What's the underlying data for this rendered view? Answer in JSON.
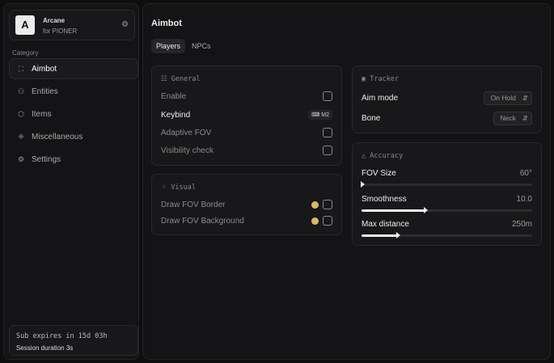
{
  "brand": {
    "logo": "A",
    "name": "Arcane",
    "subtitle": "for PIONER",
    "settings_icon": "gear-icon"
  },
  "sidebar": {
    "category_label": "Category",
    "items": [
      {
        "label": "Aimbot",
        "icon": "crosshair-icon",
        "glyph": "⛶",
        "active": true
      },
      {
        "label": "Entities",
        "icon": "entities-icon",
        "glyph": "⚇"
      },
      {
        "label": "Items",
        "icon": "box-icon",
        "glyph": "⬡"
      },
      {
        "label": "Miscellaneous",
        "icon": "grid-icon",
        "glyph": "⁜"
      },
      {
        "label": "Settings",
        "icon": "gear-icon",
        "glyph": "⚙"
      }
    ]
  },
  "subscription": {
    "expires": "Sub expires in 15d 03h",
    "session": "Session duration 3s"
  },
  "main": {
    "title": "Aimbot",
    "tabs": [
      {
        "label": "Players",
        "active": true
      },
      {
        "label": "NPCs"
      }
    ]
  },
  "general": {
    "title": "General",
    "enable": "Enable",
    "keybind": "Keybind",
    "keybind_value": "⌨ M2",
    "adaptive": "Adaptive FOV",
    "visibility": "Visibility check"
  },
  "visual": {
    "title": "Visual",
    "border": "Draw FOV Border",
    "background": "Draw FOV Background",
    "color": "#e0b860"
  },
  "tracker": {
    "title": "Tracker",
    "aim_mode": "Aim mode",
    "aim_mode_value": "On Hold",
    "bone": "Bone",
    "bone_value": "Neck"
  },
  "accuracy": {
    "title": "Accuracy",
    "fov_label": "FOV Size",
    "fov_value": "60°",
    "fov_fill": 0,
    "smooth_label": "Smoothness",
    "smooth_value": "10.0",
    "smooth_fill": 0.37,
    "dist_label": "Max distance",
    "dist_value": "250m",
    "dist_fill": 0.21
  }
}
